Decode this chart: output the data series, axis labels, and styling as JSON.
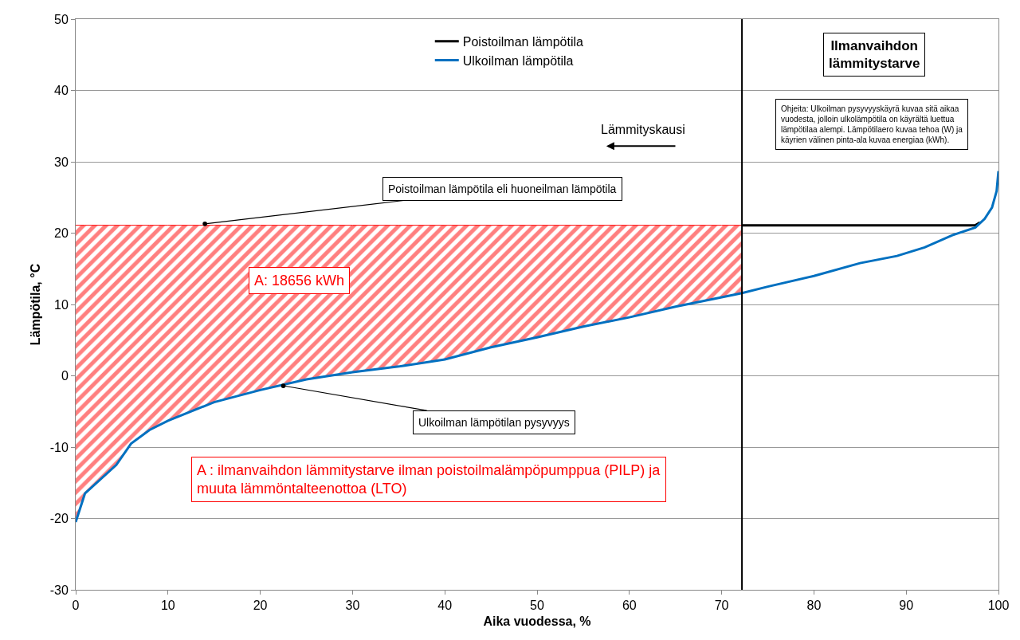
{
  "chart_data": {
    "type": "line",
    "xlabel": "Aika vuodessa, %",
    "ylabel": "Lämpötila, °C",
    "xlim": [
      0,
      100
    ],
    "xticks": [
      0,
      10,
      20,
      30,
      40,
      50,
      60,
      70,
      80,
      90,
      100
    ],
    "ylim": [
      -30,
      50
    ],
    "yticks": [
      -30,
      -20,
      -10,
      0,
      10,
      20,
      30,
      40,
      50
    ],
    "grid": "y",
    "legend": "top",
    "marker": "none",
    "line_style": "solid",
    "series": [
      {
        "type": "line",
        "color": "#ff0000",
        "x": [
          0,
          1,
          4.4,
          6,
          8,
          10,
          15,
          20,
          25,
          30,
          35,
          40,
          45,
          50,
          55,
          60,
          65,
          70,
          72.2
        ],
        "values": [
          21.1,
          21.1,
          21.1,
          21.1,
          21.1,
          21.1,
          21.1,
          21.1,
          21.1,
          21.1,
          21.1,
          21.1,
          21.1,
          21.1,
          21.1,
          21.1,
          21.1,
          21.1,
          21.1
        ],
        "upper": [
          21.1,
          21.1,
          21.1,
          21.1,
          21.1,
          21.1,
          21.1,
          21.1,
          21.1,
          21.1,
          21.1,
          21.1,
          21.1,
          21.1,
          21.1,
          21.1,
          21.1,
          21.1,
          21.1
        ],
        "lower": [
          -20.5,
          -16.5,
          -12.5,
          -9.5,
          -7.6,
          -6.3,
          -3.7,
          -2,
          -0.5,
          0.5,
          1.3,
          2.3,
          4,
          5.4,
          6.9,
          8.2,
          9.7,
          11,
          11.6
        ]
      },
      {
        "name": "Poistoilman lämpötila",
        "color": "#000000",
        "x": [
          72.2,
          97.5,
          98
        ],
        "values": [
          21.1,
          21.1,
          21.5
        ]
      },
      {
        "name": "Ulkoilman lämpötila",
        "color": "#0070c0",
        "x": [
          0,
          1,
          4.4,
          6,
          8,
          10,
          15,
          20,
          25,
          30,
          35,
          40,
          45,
          50,
          55,
          60,
          65,
          70,
          72.2,
          75,
          80,
          85,
          89,
          92,
          95,
          97.5,
          98.5,
          99.3,
          99.8,
          100
        ],
        "values": [
          -20.5,
          -16.5,
          -12.5,
          -9.5,
          -7.6,
          -6.3,
          -3.7,
          -2,
          -0.5,
          0.5,
          1.3,
          2.3,
          4,
          5.4,
          6.9,
          8.2,
          9.7,
          11,
          11.6,
          12.5,
          14,
          15.8,
          16.8,
          18,
          19.7,
          20.8,
          22,
          23.6,
          25.9,
          28.7
        ]
      }
    ],
    "ref_lines": [
      {
        "axis": "x",
        "value": 72.2,
        "color": "#000000"
      }
    ],
    "annotations": [
      "Ilmanvaihdon\nlämmitystarve",
      "Ohjeita: Ulkoilman pysyvyyskäyrä kuvaa sitä aikaa\nvuodesta, jolloin ulkolämpötila on käyrältä luettua\nlämpötilaa alempi. Lämpötilaero kuvaa tehoa (W) ja\nkäyrien välinen pinta-ala kuvaa energiaa (kWh).",
      "Lämmityskausi",
      {
        "text": "Poistoilman lämpötila eli huoneilman lämpötila",
        "x": 14,
        "y": 21.3
      },
      {
        "text": "Ulkoilman lämpötilan pysyvyys",
        "x": 22.5,
        "y": -1.4
      },
      "A: 18656 kWh",
      "A : ilmanvaihdon lämmitystarve ilman poistoilmalämpöpumppua (PILP) ja\nmuuta lämmöntalteenottoa (LTO)"
    ]
  }
}
